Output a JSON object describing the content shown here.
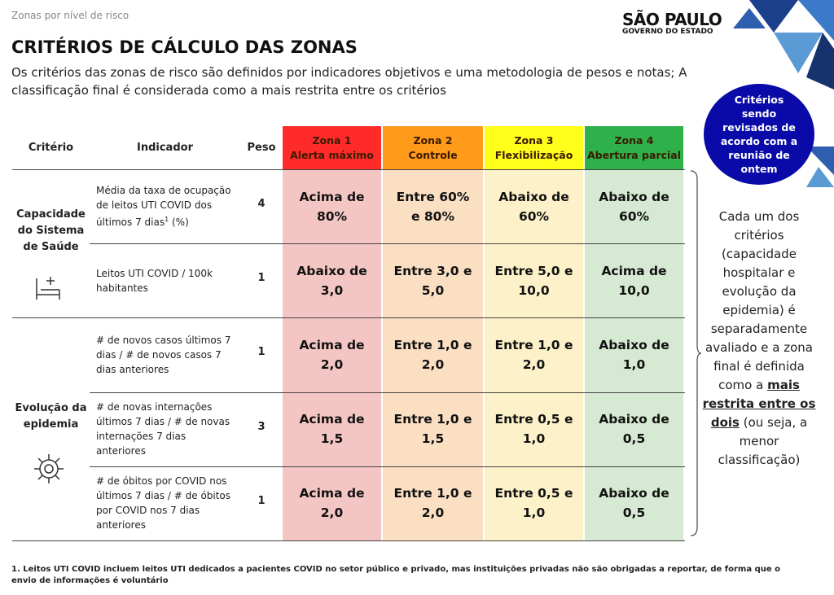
{
  "header": {
    "breadcrumb": "Zonas por nível de risco",
    "logo_title": "SÃO PAULO",
    "logo_subtitle": "GOVERNO DO ESTADO",
    "title": "CRITÉRIOS DE CÁLCULO DAS ZONAS",
    "subtitle": "Os critérios das zonas de risco são definidos por indicadores objetivos e uma metodologia de pesos e notas; A classificação final é considerada como a mais restrita entre os critérios"
  },
  "badge": "Critérios sendo revisados de acordo com a reunião de ontem",
  "table": {
    "headers": [
      "Critério",
      "Indicador",
      "Peso"
    ],
    "zones": [
      {
        "name": "Zona 1",
        "label": "Alerta máximo",
        "color": "#ff2b2b",
        "cell_color": "#f4c6c3"
      },
      {
        "name": "Zona 2",
        "label": "Controle",
        "color": "#ff9a1a",
        "cell_color": "#fbdfc3"
      },
      {
        "name": "Zona 3",
        "label": "Flexibilização",
        "color": "#ffff1a",
        "cell_color": "#fcf1c8"
      },
      {
        "name": "Zona 4",
        "label": "Abertura parcial",
        "color": "#2eb04a",
        "cell_color": "#d6e9d2"
      }
    ],
    "groups": [
      {
        "name": "Capacidade do Sistema de Saúde",
        "rows": [
          {
            "indicator": "Média da taxa de ocupação de leitos UTI COVID dos últimos 7 dias",
            "indicator_sup": "1",
            "indicator_suffix": " (%)",
            "weight": 4,
            "cells": [
              "Acima de 80%",
              "Entre 60% e 80%",
              "Abaixo de 60%",
              "Abaixo de 60%"
            ]
          },
          {
            "indicator": "Leitos UTI COVID / 100k habitantes",
            "weight": 1,
            "cells": [
              "Abaixo de 3,0",
              "Entre 3,0 e 5,0",
              "Entre 5,0 e 10,0",
              "Acima de 10,0"
            ]
          }
        ]
      },
      {
        "name": "Evolução da epidemia",
        "rows": [
          {
            "indicator": "# de novos casos últimos 7 dias / # de novos casos 7 dias anteriores",
            "weight": 1,
            "cells": [
              "Acima de 2,0",
              "Entre 1,0 e 2,0",
              "Entre 1,0 e 2,0",
              "Abaixo de 1,0"
            ]
          },
          {
            "indicator": "# de novas internações últimos 7 dias / # de novas internações 7 dias anteriores",
            "weight": 3,
            "cells": [
              "Acima de 1,5",
              "Entre 1,0 e 1,5",
              "Entre 0,5 e 1,0",
              "Abaixo de 0,5"
            ]
          },
          {
            "indicator": "# de óbitos por COVID nos últimos 7 dias / # de óbitos por COVID nos 7 dias anteriores",
            "weight": 1,
            "cells": [
              "Acima de 2,0",
              "Entre 1,0 e 2,0",
              "Entre 0,5 e 1,0",
              "Abaixo de 0,5"
            ]
          }
        ]
      }
    ]
  },
  "side_note": {
    "before": "Cada um dos critérios (capacidade hospitalar e evolução da epidemia) é separadamente avaliado e a zona final é definida como a",
    "emphasis": "mais restrita entre os dois",
    "after": "(ou seja, a menor classificação)"
  },
  "footnote": "1. Leitos UTI COVID incluem leitos UTI dedicados a pacientes COVID no setor público e privado, mas instituições privadas não são obrigadas a reportar, de forma que o envio de informações é voluntário"
}
